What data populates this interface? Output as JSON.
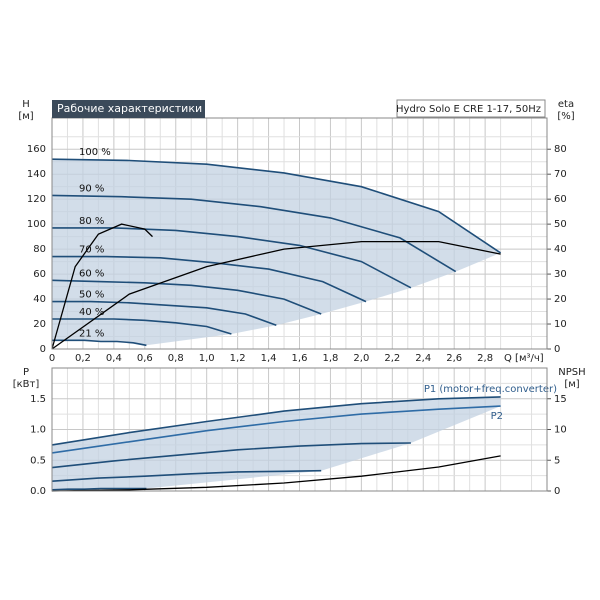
{
  "chart_data": [
    {
      "type": "line",
      "title": "Рабочие характеристики",
      "subtitle": "Hydro Solo E CRE 1-17, 50Hz",
      "y_label": "H",
      "y_unit": "[м]",
      "y2_label": "eta",
      "y2_unit": "[%]",
      "x_label": "Q [м³/ч]",
      "xlim": [
        0,
        3.2
      ],
      "xticks": [
        0,
        {
          "value": 0.2,
          "label": "0,2"
        },
        {
          "value": 0.4,
          "label": "0,4"
        },
        {
          "value": 0.6,
          "label": "0,6"
        },
        {
          "value": 0.8,
          "label": "0,8"
        },
        {
          "value": 1.0,
          "label": "1,0"
        },
        {
          "value": 1.2,
          "label": "1,2"
        },
        {
          "value": 1.4,
          "label": "1,4"
        },
        {
          "value": 1.6,
          "label": "1,6"
        },
        {
          "value": 1.8,
          "label": "1,8"
        },
        {
          "value": 2.0,
          "label": "2,0"
        },
        {
          "value": 2.2,
          "label": "2,2"
        },
        {
          "value": 2.4,
          "label": "2,4"
        },
        {
          "value": 2.6,
          "label": "2,6"
        },
        {
          "value": 2.8,
          "label": "2,8"
        }
      ],
      "ylim": [
        0,
        185
      ],
      "yticks": [
        0,
        20,
        40,
        60,
        80,
        100,
        120,
        140,
        160
      ],
      "y2lim": [
        0,
        92.5
      ],
      "y2ticks": [
        0,
        10,
        20,
        30,
        40,
        50,
        60,
        70,
        80
      ],
      "grid": true,
      "series": [
        {
          "name": "100 %",
          "color": "#1f4e79",
          "x": [
            0,
            0.5,
            1.0,
            1.5,
            2.0,
            2.5,
            2.9
          ],
          "values": [
            152,
            151,
            148,
            141,
            130,
            110,
            77
          ]
        },
        {
          "name": "90 %",
          "color": "#1f4e79",
          "x": [
            0,
            0.45,
            0.9,
            1.35,
            1.8,
            2.25,
            2.61
          ],
          "values": [
            123,
            122,
            120,
            114,
            105,
            89,
            62
          ]
        },
        {
          "name": "80 %",
          "color": "#1f4e79",
          "x": [
            0,
            0.4,
            0.8,
            1.2,
            1.6,
            2.0,
            2.32
          ],
          "values": [
            97,
            97,
            95,
            90,
            83,
            70,
            49
          ]
        },
        {
          "name": "70 %",
          "color": "#1f4e79",
          "x": [
            0,
            0.35,
            0.7,
            1.05,
            1.4,
            1.75,
            2.03
          ],
          "values": [
            74,
            74,
            73,
            69,
            64,
            54,
            38
          ]
        },
        {
          "name": "60 %",
          "color": "#1f4e79",
          "x": [
            0,
            0.3,
            0.6,
            0.9,
            1.2,
            1.5,
            1.74
          ],
          "values": [
            55,
            54,
            53,
            51,
            47,
            40,
            28
          ]
        },
        {
          "name": "50 %",
          "color": "#1f4e79",
          "x": [
            0,
            0.25,
            0.5,
            0.75,
            1.0,
            1.25,
            1.45
          ],
          "values": [
            38,
            38,
            37,
            35,
            33,
            28,
            19
          ]
        },
        {
          "name": "40 %",
          "color": "#1f4e79",
          "x": [
            0,
            0.2,
            0.4,
            0.6,
            0.8,
            1.0,
            1.16
          ],
          "values": [
            24,
            24,
            24,
            23,
            21,
            18,
            12
          ]
        },
        {
          "name": "21 %",
          "color": "#1f4e79",
          "x": [
            0,
            0.105,
            0.21,
            0.315,
            0.42,
            0.525,
            0.61
          ],
          "values": [
            7,
            7,
            7,
            6,
            6,
            5,
            3
          ]
        },
        {
          "axis": "y2",
          "color": "#000000",
          "x": [
            0,
            0.5,
            1.0,
            1.5,
            2.0,
            2.5,
            2.9
          ],
          "values": [
            0,
            22,
            33,
            40,
            43,
            43,
            38
          ]
        },
        {
          "axis": "y2",
          "color": "#000000",
          "x": [
            0,
            0.15,
            0.3,
            0.45,
            0.6,
            0.65
          ],
          "values": [
            0,
            33,
            46,
            50,
            48,
            45
          ]
        }
      ]
    },
    {
      "type": "line",
      "y_label": "P",
      "y_unit": "[кВт]",
      "y2_label": "NPSH",
      "y2_unit": "[м]",
      "xlim": [
        0,
        3.2
      ],
      "ylim": [
        0,
        2
      ],
      "yticks": [
        {
          "value": 0,
          "label": "0.0"
        },
        0.5,
        {
          "value": 1,
          "label": "1.0"
        },
        1.5
      ],
      "y2lim": [
        0,
        20
      ],
      "y2ticks": [
        0,
        5,
        10,
        15
      ],
      "grid": true,
      "series": [
        {
          "name": "P1 (motor+freq.converter)",
          "color": "#1f4e79",
          "x": [
            0,
            0.5,
            1.0,
            1.5,
            2.0,
            2.5,
            2.9
          ],
          "values": [
            0.75,
            0.95,
            1.13,
            1.3,
            1.42,
            1.5,
            1.53
          ]
        },
        {
          "name": "P2",
          "color": "#2f6ca6",
          "x": [
            0,
            0.5,
            1.0,
            1.5,
            2.0,
            2.5,
            2.9
          ],
          "values": [
            0.62,
            0.8,
            0.98,
            1.13,
            1.25,
            1.33,
            1.38
          ]
        },
        {
          "color": "#1f4e79",
          "x": [
            0,
            0.4,
            0.8,
            1.2,
            1.6,
            2.0,
            2.32
          ],
          "values": [
            0.38,
            0.49,
            0.58,
            0.67,
            0.73,
            0.77,
            0.78
          ]
        },
        {
          "color": "#1f4e79",
          "x": [
            0,
            0.3,
            0.6,
            0.9,
            1.2,
            1.5,
            1.74
          ],
          "values": [
            0.16,
            0.21,
            0.24,
            0.28,
            0.31,
            0.32,
            0.33
          ]
        },
        {
          "color": "#1f4e79",
          "x": [
            0,
            0.105,
            0.21,
            0.315,
            0.42,
            0.525,
            0.61
          ],
          "values": [
            0.02,
            0.03,
            0.03,
            0.04,
            0.04,
            0.04,
            0.04
          ]
        },
        {
          "axis": "y2",
          "color": "#000000",
          "x": [
            0,
            0.5,
            1.0,
            1.5,
            2.0,
            2.5,
            2.9
          ],
          "values": [
            0,
            0.2,
            0.6,
            1.3,
            2.4,
            3.9,
            5.7
          ]
        }
      ]
    }
  ]
}
